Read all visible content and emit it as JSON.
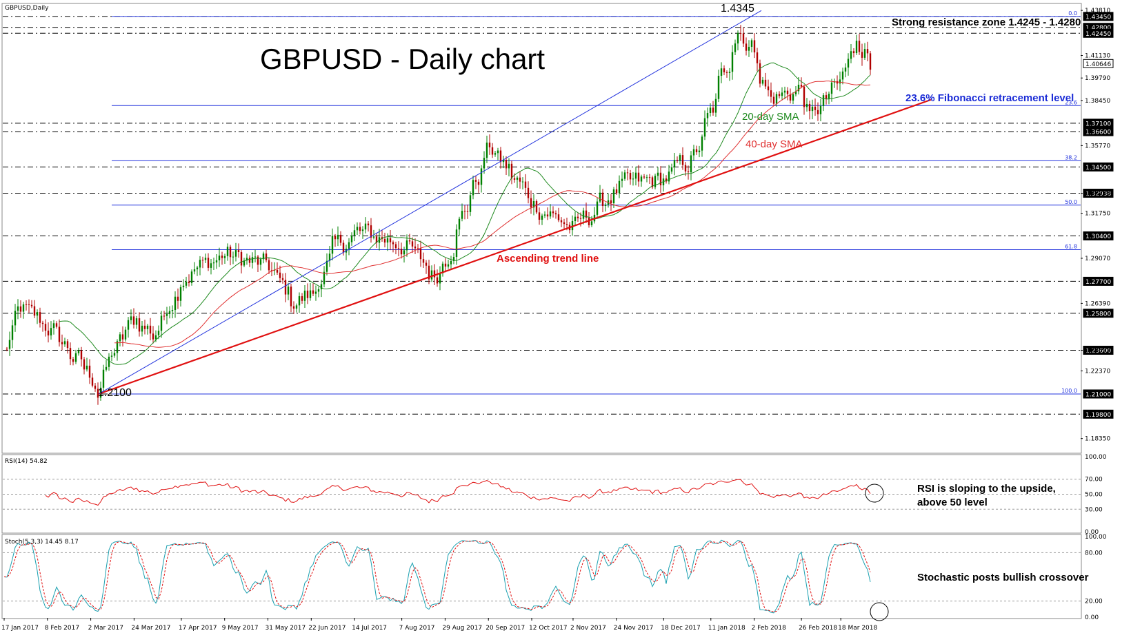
{
  "window_title": "GBPUSD,Daily",
  "chart_title": "GBPUSD - Daily chart",
  "annotations": {
    "high_label": "1.4345",
    "low_label": "1.2100",
    "resistance": "Strong resistance zone 1.4245 - 1.4280",
    "fib_236": "23.6% Fibonacci retracement level",
    "sma20": "20-day SMA",
    "sma40": "40-day SMA",
    "trend": "Ascending trend line",
    "rsi_note_1": "RSI is sloping to the upside,",
    "rsi_note_2": "above 50 level",
    "stoch_note": "Stochastic posts bullish crossover"
  },
  "indicators": {
    "rsi_header": "RSI(14) 54.82",
    "stoch_header": "Stoch(5,3,3) 14.45 8.17"
  },
  "colors": {
    "bull_candle": "#008000",
    "bear_candle": "#b00000",
    "sma20": "#1f8a1f",
    "sma40": "#e03030",
    "trend_line": "#e01010",
    "fib_lines": "#2233dd",
    "rsi_line": "#e01010",
    "stoch_main": "#1aa0b0",
    "stoch_signal": "#e01010"
  },
  "chart_data": [
    {
      "type": "candlestick",
      "title": "GBPUSD - Daily chart",
      "x_ticks": [
        "17 Jan 2017",
        "8 Feb 2017",
        "2 Mar 2017",
        "24 Mar 2017",
        "17 Apr 2017",
        "9 May 2017",
        "31 May 2017",
        "22 Jun 2017",
        "14 Jul 2017",
        "7 Aug 2017",
        "29 Aug 2017",
        "20 Sep 2017",
        "12 Oct 2017",
        "2 Nov 2017",
        "24 Nov 2017",
        "18 Dec 2017",
        "11 Jan 2018",
        "2 Feb 2018",
        "26 Feb 2018",
        "18 Mar 2018"
      ],
      "y_ticks": [
        "1.43810",
        "1.41130",
        "1.39790",
        "1.38450",
        "1.35770",
        "1.32938",
        "1.31750",
        "1.29070",
        "1.26390",
        "1.23600",
        "1.22370",
        "1.18350"
      ],
      "y_range": [
        1.176,
        1.441
      ],
      "price_anchors": [
        {
          "date": "17 Jan 2017",
          "close": 1.235
        },
        {
          "date": "25 Jan 2017",
          "close": 1.26
        },
        {
          "date": "8 Feb 2017",
          "close": 1.25
        },
        {
          "date": "2 Mar 2017",
          "close": 1.22
        },
        {
          "date": "6 Mar 2017",
          "close": 1.212
        },
        {
          "date": "10 Mar 2017",
          "close": 1.228
        },
        {
          "date": "24 Mar 2017",
          "close": 1.255
        },
        {
          "date": "3 Apr 2017",
          "close": 1.245
        },
        {
          "date": "17 Apr 2017",
          "close": 1.28
        },
        {
          "date": "9 May 2017",
          "close": 1.293
        },
        {
          "date": "31 May 2017",
          "close": 1.285
        },
        {
          "date": "12 Jun 2017",
          "close": 1.265
        },
        {
          "date": "22 Jun 2017",
          "close": 1.269
        },
        {
          "date": "3 Jul 2017",
          "close": 1.295
        },
        {
          "date": "14 Jul 2017",
          "close": 1.306
        },
        {
          "date": "7 Aug 2017",
          "close": 1.3
        },
        {
          "date": "23 Aug 2017",
          "close": 1.28
        },
        {
          "date": "29 Aug 2017",
          "close": 1.292
        },
        {
          "date": "20 Sep 2017",
          "close": 1.357
        },
        {
          "date": "12 Oct 2017",
          "close": 1.324
        },
        {
          "date": "2 Nov 2017",
          "close": 1.308
        },
        {
          "date": "24 Nov 2017",
          "close": 1.332
        },
        {
          "date": "18 Dec 2017",
          "close": 1.338
        },
        {
          "date": "2 Jan 2018",
          "close": 1.351
        },
        {
          "date": "11 Jan 2018",
          "close": 1.378
        },
        {
          "date": "24 Jan 2018",
          "close": 1.428
        },
        {
          "date": "2 Feb 2018",
          "close": 1.413
        },
        {
          "date": "9 Feb 2018",
          "close": 1.385
        },
        {
          "date": "26 Feb 2018",
          "close": 1.392
        },
        {
          "date": "1 Mar 2018",
          "close": 1.373
        },
        {
          "date": "18 Mar 2018",
          "close": 1.396
        },
        {
          "date": "26 Mar 2018",
          "close": 1.423
        },
        {
          "date": "2 Apr 2018",
          "close": 1.405
        }
      ],
      "horizontal_levels": [
        {
          "label": "1.43450",
          "value": 1.4345
        },
        {
          "label": "1.42800",
          "value": 1.428
        },
        {
          "label": "1.42450",
          "value": 1.4245
        },
        {
          "label": "1.40646",
          "value": 1.40646,
          "current": true
        },
        {
          "label": "1.37100",
          "value": 1.371
        },
        {
          "label": "1.36600",
          "value": 1.366
        },
        {
          "label": "1.34500",
          "value": 1.345
        },
        {
          "label": "1.32938",
          "value": 1.32938
        },
        {
          "label": "1.30400",
          "value": 1.304
        },
        {
          "label": "1.27700",
          "value": 1.277
        },
        {
          "label": "1.25800",
          "value": 1.258
        },
        {
          "label": "1.23600",
          "value": 1.236
        },
        {
          "label": "1.21000",
          "value": 1.21
        },
        {
          "label": "1.19800",
          "value": 1.198
        }
      ],
      "fibonacci_levels": [
        {
          "label": "0.0",
          "value": 1.4345
        },
        {
          "label": "23.6",
          "value": 1.3815
        },
        {
          "label": "38.2",
          "value": 1.3487
        },
        {
          "label": "50.0",
          "value": 1.3223
        },
        {
          "label": "61.8",
          "value": 1.2958
        },
        {
          "label": "100.0",
          "value": 1.21
        }
      ]
    },
    {
      "type": "line",
      "name": "RSI(14)",
      "value": 54.82,
      "y_ticks": [
        "100.00",
        "70.00",
        "50.00",
        "30.00",
        "0.00"
      ],
      "y_range": [
        0,
        100
      ],
      "levels": [
        70,
        50,
        30
      ]
    },
    {
      "type": "line",
      "name": "Stoch(5,3,3)",
      "values": [
        14.45,
        8.17
      ],
      "y_ticks": [
        "100.00",
        "80.00",
        "20.00",
        "0.00"
      ],
      "y_range": [
        0,
        100
      ],
      "levels": [
        80,
        20
      ]
    }
  ]
}
